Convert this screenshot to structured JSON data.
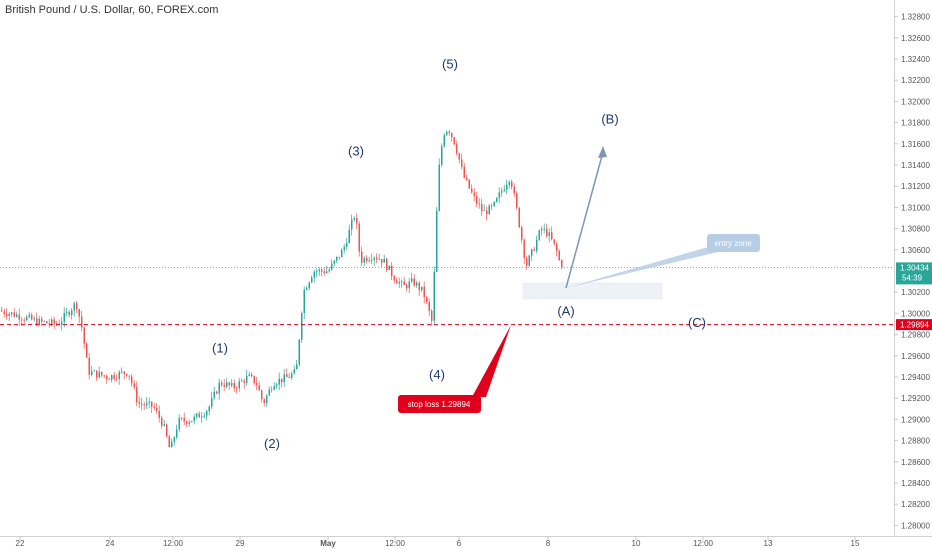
{
  "chart_data": {
    "type": "candlestick",
    "title": "British Pound / U.S. Dollar, 60, FOREX.com",
    "ylim": [
      1.279,
      1.329
    ],
    "y_ticks": [
      "1.32800",
      "1.32600",
      "1.32400",
      "1.32200",
      "1.32000",
      "1.31800",
      "1.31600",
      "1.31400",
      "1.31200",
      "1.31000",
      "1.30800",
      "1.30600",
      "1.30200",
      "1.30000",
      "1.29800",
      "1.29600",
      "1.29400",
      "1.29200",
      "1.29000",
      "1.28800",
      "1.28600",
      "1.28400",
      "1.28200",
      "1.28000"
    ],
    "x_ticks": [
      {
        "label": "22",
        "bold": false
      },
      {
        "label": "24",
        "bold": false
      },
      {
        "label": "12:00",
        "bold": false
      },
      {
        "label": "29",
        "bold": false
      },
      {
        "label": "May",
        "bold": true
      },
      {
        "label": "12:00",
        "bold": false
      },
      {
        "label": "6",
        "bold": false
      },
      {
        "label": "8",
        "bold": false
      },
      {
        "label": "10",
        "bold": false
      },
      {
        "label": "12:00",
        "bold": false
      },
      {
        "label": "13",
        "bold": false
      },
      {
        "label": "15",
        "bold": false
      }
    ],
    "price_path": [
      [
        0,
        1.3003
      ],
      [
        20,
        1.2998
      ],
      [
        40,
        1.2992
      ],
      [
        60,
        1.299
      ],
      [
        78,
        1.301
      ],
      [
        84,
        1.2985
      ],
      [
        90,
        1.2945
      ],
      [
        110,
        1.294
      ],
      [
        130,
        1.2945
      ],
      [
        140,
        1.2915
      ],
      [
        155,
        1.2912
      ],
      [
        165,
        1.2895
      ],
      [
        172,
        1.287
      ],
      [
        180,
        1.2898
      ],
      [
        195,
        1.29
      ],
      [
        210,
        1.291
      ],
      [
        222,
        1.2935
      ],
      [
        235,
        1.293
      ],
      [
        250,
        1.294
      ],
      [
        258,
        1.2935
      ],
      [
        265,
        1.2915
      ],
      [
        275,
        1.2935
      ],
      [
        290,
        1.294
      ],
      [
        298,
        1.2945
      ],
      [
        305,
        1.302
      ],
      [
        315,
        1.304
      ],
      [
        330,
        1.304
      ],
      [
        345,
        1.306
      ],
      [
        357,
        1.3095
      ],
      [
        362,
        1.305
      ],
      [
        375,
        1.3055
      ],
      [
        385,
        1.305
      ],
      [
        395,
        1.3035
      ],
      [
        405,
        1.3025
      ],
      [
        415,
        1.303
      ],
      [
        425,
        1.302
      ],
      [
        434,
        1.2991
      ],
      [
        440,
        1.313
      ],
      [
        445,
        1.317
      ],
      [
        450,
        1.3175
      ],
      [
        457,
        1.316
      ],
      [
        465,
        1.313
      ],
      [
        475,
        1.311
      ],
      [
        485,
        1.3095
      ],
      [
        495,
        1.31
      ],
      [
        503,
        1.3115
      ],
      [
        512,
        1.313
      ],
      [
        520,
        1.309
      ],
      [
        528,
        1.3045
      ],
      [
        535,
        1.306
      ],
      [
        543,
        1.308
      ],
      [
        550,
        1.3075
      ],
      [
        558,
        1.306
      ],
      [
        563,
        1.3043
      ]
    ],
    "current_price": {
      "value": 1.30434,
      "label": "1.30434",
      "countdown": "54:39"
    },
    "stop_price": {
      "value": 1.29894,
      "label": "1.29894"
    },
    "wave_labels": [
      {
        "text": "(1)",
        "x": 220,
        "price": 1.2963
      },
      {
        "text": "(2)",
        "x": 272,
        "price": 1.2873
      },
      {
        "text": "(3)",
        "x": 356,
        "price": 1.3149
      },
      {
        "text": "(4)",
        "x": 437,
        "price": 1.2938
      },
      {
        "text": "(5)",
        "x": 450,
        "price": 1.3231
      },
      {
        "text": "(A)",
        "x": 566,
        "price": 1.2998
      },
      {
        "text": "(B)",
        "x": 610,
        "price": 1.3179
      },
      {
        "text": "(C)",
        "x": 697,
        "price": 1.2987
      }
    ],
    "annotations": [
      {
        "kind": "callout",
        "text": "entry zone",
        "color": "#b7cde6"
      },
      {
        "kind": "callout",
        "text": "stop loss 1.29894",
        "color": "#e0001b"
      }
    ]
  }
}
